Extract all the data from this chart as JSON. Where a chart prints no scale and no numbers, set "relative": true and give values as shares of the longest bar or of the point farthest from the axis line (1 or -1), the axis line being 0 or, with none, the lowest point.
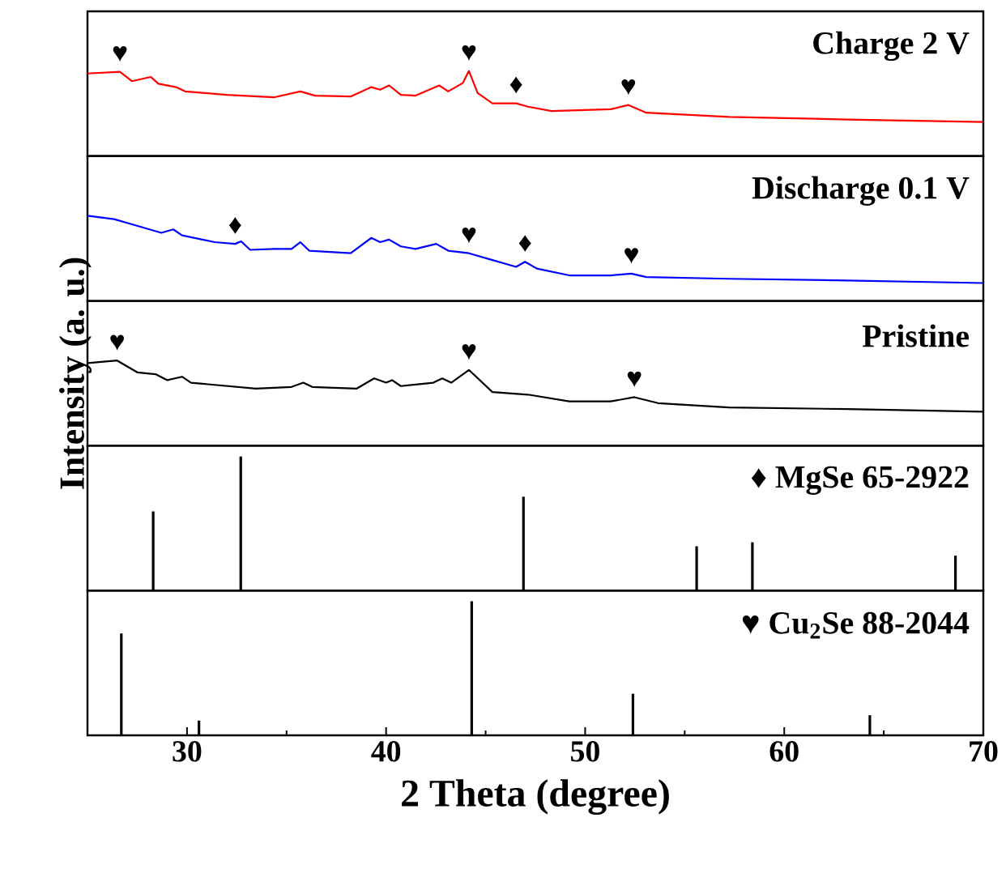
{
  "chart_data": [
    {
      "type": "line",
      "relative": true,
      "xlim": [
        25,
        70
      ],
      "xticks": [
        30,
        40,
        50,
        60,
        70
      ],
      "tick_labels": false,
      "series": [
        {
          "name": "Charge 2 V",
          "color": "#ff0000",
          "x": [
            25.0,
            26.63,
            27.23,
            28.18,
            28.56,
            29.45,
            29.9,
            31.98,
            34.36,
            35.69,
            36.43,
            38.22,
            39.26,
            39.7,
            40.15,
            40.74,
            41.48,
            42.67,
            43.12,
            43.86,
            44.16,
            44.6,
            45.34,
            46.53,
            47.13,
            48.31,
            51.28,
            52.17,
            53.07,
            57.22,
            63.16,
            70.0
          ],
          "values": [
            0.97,
            0.99,
            0.88,
            0.93,
            0.85,
            0.81,
            0.76,
            0.72,
            0.69,
            0.76,
            0.71,
            0.7,
            0.81,
            0.78,
            0.83,
            0.72,
            0.71,
            0.83,
            0.76,
            0.86,
            1.0,
            0.74,
            0.62,
            0.62,
            0.58,
            0.53,
            0.55,
            0.6,
            0.51,
            0.46,
            0.43,
            0.4
          ]
        }
      ],
      "annotations": [
        {
          "text": "♥",
          "x": 26.63,
          "y": 0.99
        },
        {
          "text": "♥",
          "x": 44.16,
          "y": 1.0
        },
        {
          "text": "♦",
          "x": 46.53,
          "y": 0.62
        },
        {
          "text": "♥",
          "x": 52.17,
          "y": 0.6
        }
      ]
    },
    {
      "type": "line",
      "relative": true,
      "xlim": [
        25,
        70
      ],
      "xticks": [
        30,
        40,
        50,
        60,
        70
      ],
      "tick_labels": false,
      "series": [
        {
          "name": "Discharge 0.1 V",
          "color": "#0000ff",
          "x": [
            25.0,
            26.34,
            27.52,
            28.71,
            29.31,
            29.75,
            31.39,
            32.42,
            32.72,
            33.17,
            34.36,
            35.25,
            35.69,
            36.14,
            38.22,
            39.26,
            39.7,
            40.15,
            40.74,
            41.48,
            42.52,
            43.12,
            44.16,
            45.34,
            46.53,
            46.98,
            47.57,
            49.2,
            51.28,
            52.32,
            53.07,
            57.22,
            63.16,
            70.0
          ],
          "values": [
            1.0,
            0.96,
            0.88,
            0.8,
            0.84,
            0.77,
            0.69,
            0.67,
            0.7,
            0.6,
            0.61,
            0.61,
            0.69,
            0.59,
            0.56,
            0.74,
            0.69,
            0.72,
            0.64,
            0.61,
            0.67,
            0.59,
            0.56,
            0.48,
            0.4,
            0.46,
            0.38,
            0.3,
            0.3,
            0.32,
            0.28,
            0.26,
            0.24,
            0.21
          ]
        }
      ],
      "annotations": [
        {
          "text": "♦",
          "x": 32.42,
          "y": 0.67
        },
        {
          "text": "♥",
          "x": 44.16,
          "y": 0.56
        },
        {
          "text": "♦",
          "x": 46.98,
          "y": 0.46
        },
        {
          "text": "♥",
          "x": 52.32,
          "y": 0.32
        }
      ]
    },
    {
      "type": "line",
      "relative": true,
      "xlim": [
        25,
        70
      ],
      "xticks": [
        30,
        40,
        50,
        60,
        70
      ],
      "tick_labels": false,
      "ylabel": "Intensity (a. u.)",
      "series": [
        {
          "name": "Pristine",
          "color": "#000000",
          "x": [
            25.0,
            26.49,
            27.52,
            28.42,
            29.01,
            29.75,
            30.2,
            33.46,
            35.25,
            35.84,
            36.29,
            38.51,
            39.4,
            40.0,
            40.3,
            40.74,
            42.37,
            42.82,
            43.27,
            44.16,
            45.34,
            47.13,
            49.2,
            51.28,
            52.47,
            53.66,
            57.22,
            63.16,
            70.0
          ],
          "values": [
            0.97,
            1.0,
            0.86,
            0.84,
            0.77,
            0.81,
            0.74,
            0.67,
            0.69,
            0.74,
            0.69,
            0.67,
            0.79,
            0.74,
            0.77,
            0.7,
            0.74,
            0.79,
            0.74,
            0.89,
            0.63,
            0.6,
            0.52,
            0.52,
            0.57,
            0.5,
            0.45,
            0.43,
            0.4
          ]
        }
      ],
      "annotations": [
        {
          "text": "♥",
          "x": 26.49,
          "y": 1.0
        },
        {
          "text": "♥",
          "x": 44.16,
          "y": 0.89
        },
        {
          "text": "♥",
          "x": 52.47,
          "y": 0.57
        }
      ]
    },
    {
      "type": "bar",
      "relative": true,
      "xlim": [
        25,
        70
      ],
      "xticks": [
        30,
        40,
        50,
        60,
        70
      ],
      "tick_labels": false,
      "series": [
        {
          "name": "♦ MgSe 65-2922",
          "color": "#000000",
          "x": [
            28.3,
            32.7,
            46.9,
            55.6,
            58.4,
            68.6
          ],
          "values": [
            0.59,
            1.0,
            0.7,
            0.33,
            0.36,
            0.26
          ]
        }
      ]
    },
    {
      "type": "bar",
      "relative": true,
      "xlim": [
        25,
        70
      ],
      "xlabel": "2 Theta (degree)",
      "xticks": [
        30,
        {
          "value": 35,
          "label": null
        },
        40,
        {
          "value": 45,
          "label": null
        },
        50,
        {
          "value": 55,
          "label": null
        },
        60,
        {
          "value": 65,
          "label": null
        },
        70
      ],
      "series": [
        {
          "name": "♥ Cu$_{2}$Se 88-2044",
          "color": "#000000",
          "x": [
            26.7,
            30.6,
            44.3,
            52.4,
            64.3
          ],
          "values": [
            0.76,
            0.11,
            1.0,
            0.31,
            0.15
          ]
        }
      ]
    }
  ]
}
